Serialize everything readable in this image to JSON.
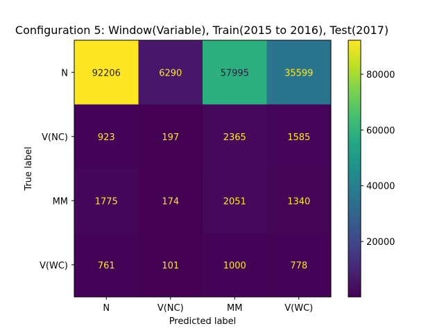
{
  "chart_data": {
    "type": "heatmap",
    "title": "Configuration 5: Window(Variable), Train(2015 to 2016), Test(2017)",
    "xlabel": "Predicted label",
    "ylabel": "True label",
    "x_categories": [
      "N",
      "V(NC)",
      "MM",
      "V(WC)"
    ],
    "y_categories": [
      "N",
      "V(NC)",
      "MM",
      "V(WC)"
    ],
    "values": [
      [
        92206,
        6290,
        57995,
        35599
      ],
      [
        923,
        197,
        2365,
        1585
      ],
      [
        1775,
        174,
        2051,
        1340
      ],
      [
        761,
        101,
        1000,
        778
      ]
    ],
    "colormap": "viridis",
    "colorbar": {
      "range": [
        101,
        92206
      ],
      "ticks": [
        20000,
        40000,
        60000,
        80000
      ],
      "tick_labels": [
        "20000",
        "40000",
        "60000",
        "80000"
      ]
    },
    "text_colors": {
      "light": "#fde725",
      "dark": "#2d1e3e"
    }
  }
}
